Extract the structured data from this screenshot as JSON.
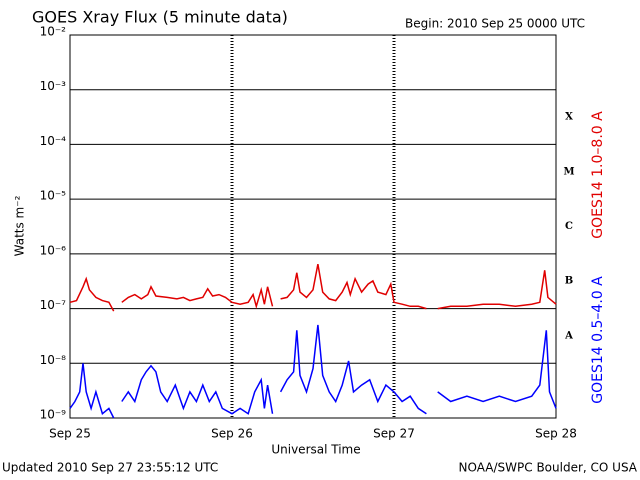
{
  "chart_data": {
    "type": "line",
    "title": "GOES Xray Flux (5 minute data)",
    "subtitle": "Begin:  2010 Sep 25 0000 UTC",
    "y_label": "Watts m⁻²",
    "x_label": "Universal Time",
    "footer_left": "Updated 2010 Sep 27 23:55:12 UTC",
    "footer_right": "NOAA/SWPC Boulder, CO USA",
    "log_y": true,
    "grid": true,
    "ylim": [
      1e-09,
      0.01
    ],
    "yticks": [
      {
        "value": 1e-09,
        "label": "10⁻⁹"
      },
      {
        "value": 1e-08,
        "label": "10⁻⁸"
      },
      {
        "value": 1e-07,
        "label": "10⁻⁷"
      },
      {
        "value": 1e-06,
        "label": "10⁻⁶"
      },
      {
        "value": 1e-05,
        "label": "10⁻⁵"
      },
      {
        "value": 0.0001,
        "label": "10⁻⁴"
      },
      {
        "value": 0.001,
        "label": "10⁻³"
      },
      {
        "value": 0.01,
        "label": "10⁻²"
      }
    ],
    "xlim": [
      0,
      3
    ],
    "xticks": [
      {
        "value": 0,
        "label": "Sep 25"
      },
      {
        "value": 1,
        "label": "Sep 26"
      },
      {
        "value": 2,
        "label": "Sep 27"
      },
      {
        "value": 3,
        "label": "Sep 28"
      }
    ],
    "flare_classes": [
      "X",
      "M",
      "C",
      "B",
      "A"
    ],
    "series": [
      {
        "name": "GOES14 1.0–8.0 A",
        "color": "#e00000",
        "x": [
          0,
          0.04,
          0.08,
          0.1,
          0.12,
          0.16,
          0.2,
          0.24,
          0.27,
          0.28,
          0.32,
          0.36,
          0.4,
          0.44,
          0.48,
          0.5,
          0.53,
          0.6,
          0.66,
          0.7,
          0.74,
          0.78,
          0.82,
          0.85,
          0.88,
          0.92,
          0.96,
          1.0,
          1.05,
          1.1,
          1.13,
          1.15,
          1.18,
          1.2,
          1.22,
          1.25,
          1.26,
          1.3,
          1.34,
          1.38,
          1.4,
          1.42,
          1.46,
          1.5,
          1.53,
          1.56,
          1.6,
          1.64,
          1.68,
          1.71,
          1.73,
          1.76,
          1.8,
          1.84,
          1.87,
          1.9,
          1.95,
          1.98,
          2.0,
          2.05,
          2.1,
          2.15,
          2.2,
          2.23,
          2.27,
          2.35,
          2.45,
          2.55,
          2.65,
          2.75,
          2.85,
          2.9,
          2.93,
          2.95,
          3.0
        ],
        "values": [
          1.3e-07,
          1.4e-07,
          2.5e-07,
          3.5e-07,
          2.2e-07,
          1.6e-07,
          1.4e-07,
          1.3e-07,
          9e-08,
          null,
          1.3e-07,
          1.6e-07,
          1.8e-07,
          1.5e-07,
          1.8e-07,
          2.5e-07,
          1.7e-07,
          1.6e-07,
          1.5e-07,
          1.6e-07,
          1.4e-07,
          1.5e-07,
          1.6e-07,
          2.3e-07,
          1.7e-07,
          1.8e-07,
          1.6e-07,
          1.3e-07,
          1.2e-07,
          1.3e-07,
          1.8e-07,
          1.1e-07,
          2.2e-07,
          1.2e-07,
          2.5e-07,
          1.1e-07,
          null,
          1.5e-07,
          1.6e-07,
          2.2e-07,
          4.5e-07,
          2e-07,
          1.6e-07,
          2.2e-07,
          6.5e-07,
          2e-07,
          1.5e-07,
          1.4e-07,
          2e-07,
          3e-07,
          1.8e-07,
          3.5e-07,
          2e-07,
          2.8e-07,
          3.2e-07,
          2e-07,
          1.8e-07,
          2.8e-07,
          1.3e-07,
          1.2e-07,
          1.1e-07,
          1.1e-07,
          1e-07,
          null,
          1e-07,
          1.1e-07,
          1.1e-07,
          1.2e-07,
          1.2e-07,
          1.1e-07,
          1.2e-07,
          1.3e-07,
          5e-07,
          1.6e-07,
          1.2e-07
        ]
      },
      {
        "name": "GOES14 0.5–4.0 A",
        "color": "#0000ff",
        "x": [
          0,
          0.03,
          0.06,
          0.08,
          0.1,
          0.13,
          0.16,
          0.2,
          0.24,
          0.27,
          0.28,
          0.32,
          0.36,
          0.4,
          0.44,
          0.47,
          0.5,
          0.53,
          0.56,
          0.6,
          0.65,
          0.7,
          0.74,
          0.78,
          0.82,
          0.86,
          0.9,
          0.94,
          1.0,
          1.05,
          1.1,
          1.14,
          1.18,
          1.2,
          1.22,
          1.25,
          1.26,
          1.3,
          1.34,
          1.38,
          1.4,
          1.42,
          1.46,
          1.5,
          1.53,
          1.56,
          1.6,
          1.64,
          1.68,
          1.72,
          1.75,
          1.8,
          1.85,
          1.9,
          1.95,
          2.0,
          2.05,
          2.1,
          2.15,
          2.2,
          2.23,
          2.27,
          2.35,
          2.45,
          2.55,
          2.65,
          2.75,
          2.85,
          2.9,
          2.94,
          2.96,
          3.0
        ],
        "values": [
          1.5e-09,
          2e-09,
          3e-09,
          1e-08,
          3e-09,
          1.5e-09,
          3e-09,
          1.2e-09,
          1.5e-09,
          1e-09,
          null,
          2e-09,
          3e-09,
          2e-09,
          5e-09,
          7e-09,
          9e-09,
          7e-09,
          3e-09,
          2e-09,
          4e-09,
          1.5e-09,
          3e-09,
          2e-09,
          4e-09,
          2e-09,
          3e-09,
          1.5e-09,
          1.2e-09,
          1.5e-09,
          1.2e-09,
          3e-09,
          5e-09,
          1.5e-09,
          4e-09,
          1.2e-09,
          null,
          3e-09,
          5e-09,
          7e-09,
          4e-08,
          6e-09,
          3e-09,
          8e-09,
          5e-08,
          6e-09,
          3e-09,
          2e-09,
          4e-09,
          1.1e-08,
          3e-09,
          4e-09,
          5e-09,
          2e-09,
          4e-09,
          3e-09,
          2e-09,
          2.5e-09,
          1.5e-09,
          1.2e-09,
          null,
          3e-09,
          2e-09,
          2.5e-09,
          2e-09,
          2.5e-09,
          2e-09,
          2.5e-09,
          4e-09,
          4e-08,
          3e-09,
          1.5e-09
        ]
      }
    ]
  }
}
